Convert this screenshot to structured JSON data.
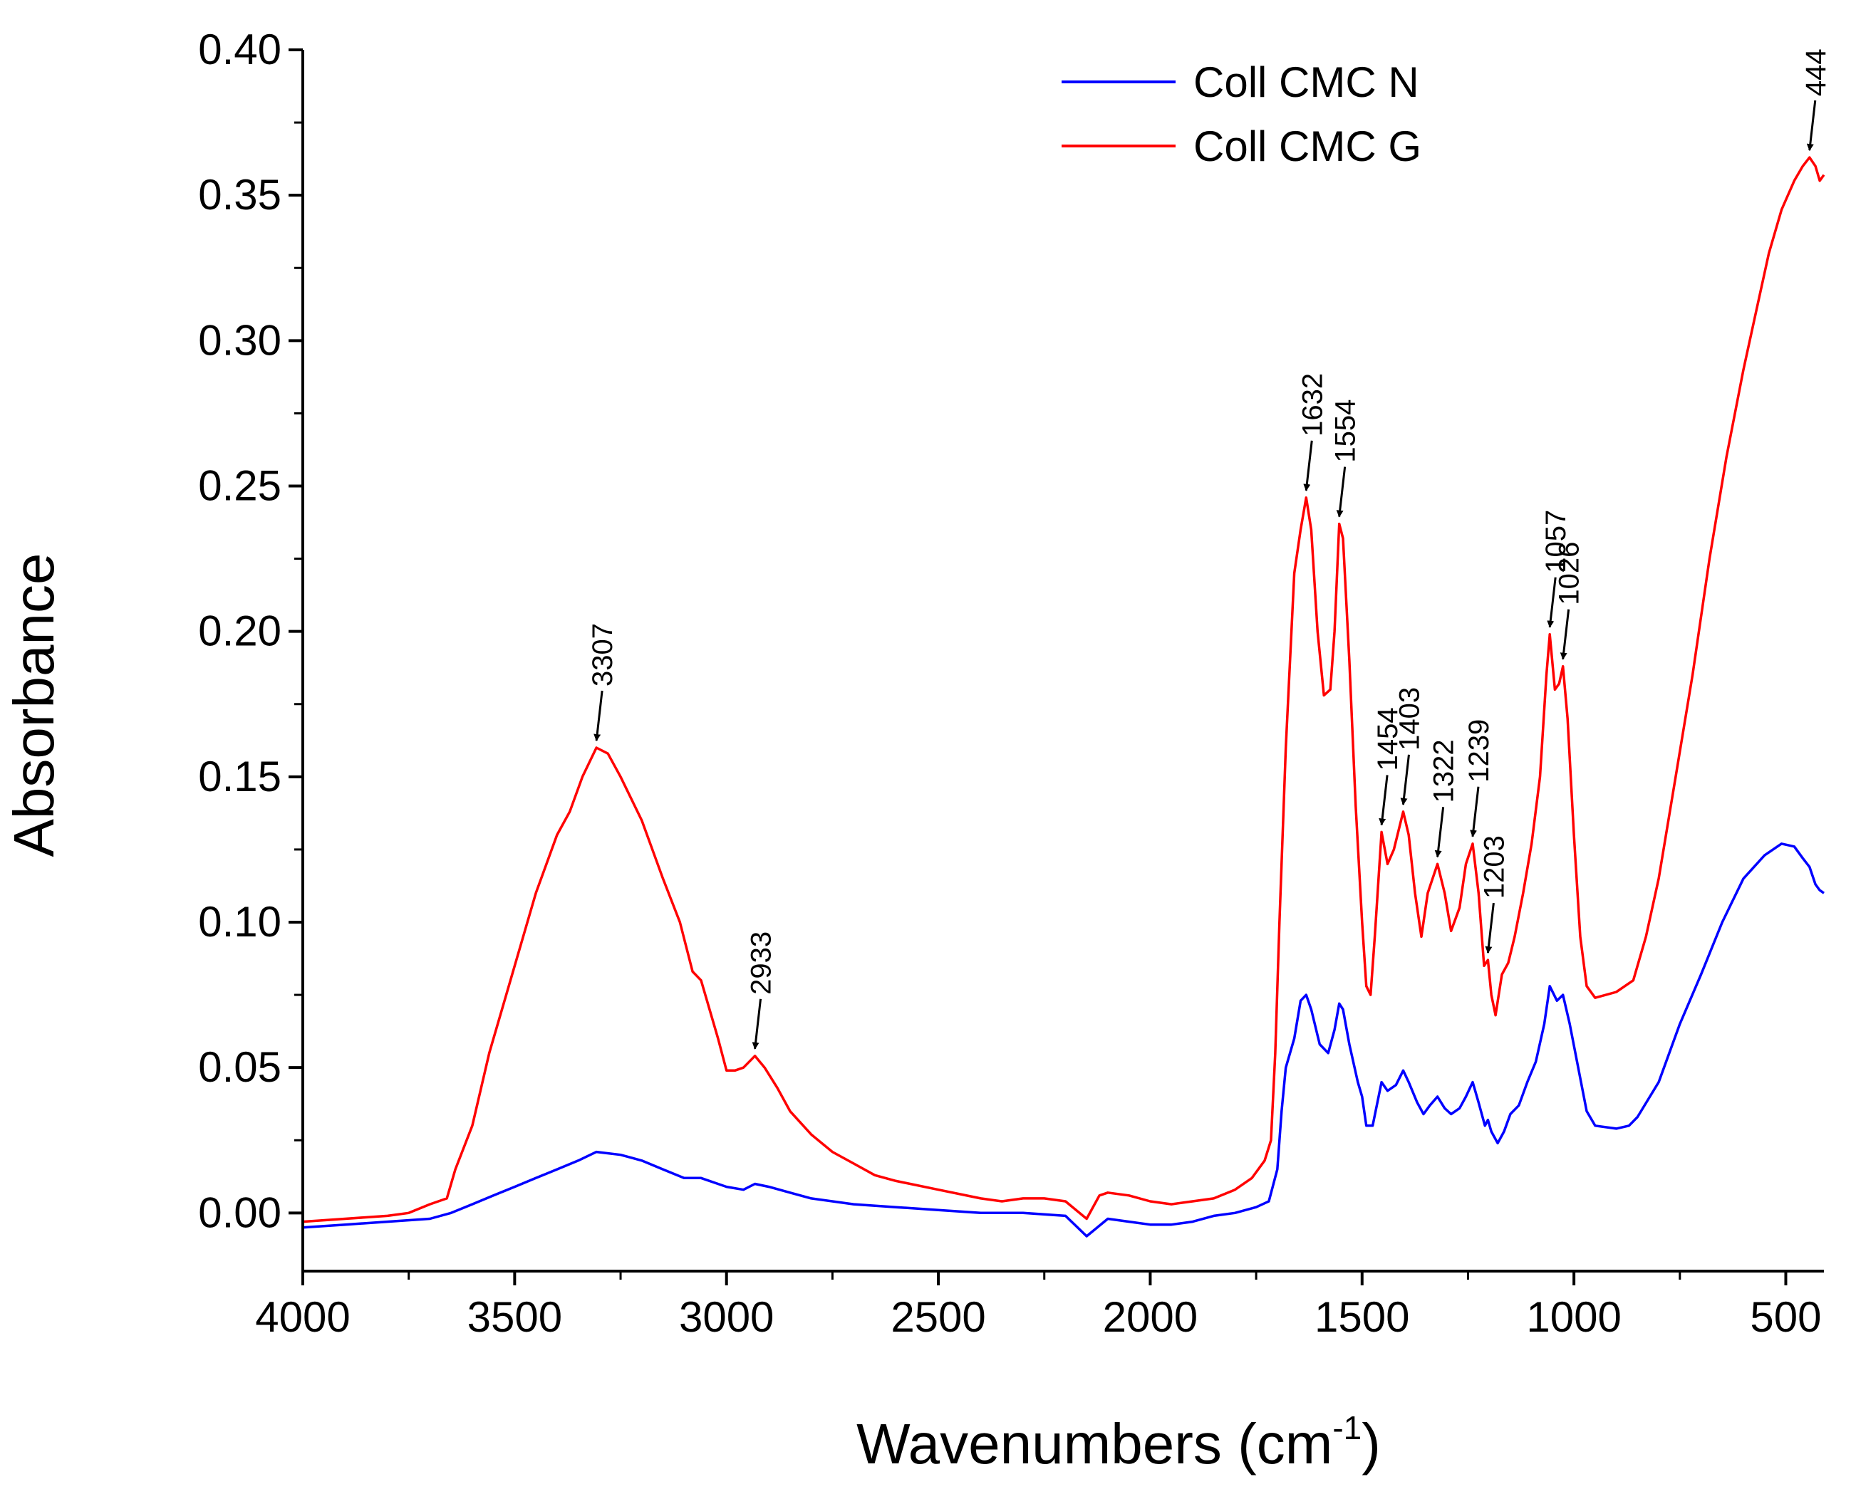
{
  "chart_data": {
    "type": "line",
    "title": "",
    "xlabel": "Wavenumbers (cm",
    "xlabel_sup": "-1",
    "xlabel_close": ")",
    "ylabel": "Absorbance",
    "xlim": [
      4000,
      410
    ],
    "ylim": [
      -0.02,
      0.4
    ],
    "x_ticks": [
      {
        "value": 4000,
        "label": "4000"
      },
      {
        "value": 3500,
        "label": "3500"
      },
      {
        "value": 3000,
        "label": "3000"
      },
      {
        "value": 2500,
        "label": "2500"
      },
      {
        "value": 2000,
        "label": "2000"
      },
      {
        "value": 1500,
        "label": "1500"
      },
      {
        "value": 1000,
        "label": "1000"
      },
      {
        "value": 500,
        "label": "500"
      }
    ],
    "y_ticks": [
      {
        "value": 0.0,
        "label": "0.00"
      },
      {
        "value": 0.05,
        "label": "0.05"
      },
      {
        "value": 0.1,
        "label": "0.10"
      },
      {
        "value": 0.15,
        "label": "0.15"
      },
      {
        "value": 0.2,
        "label": "0.20"
      },
      {
        "value": 0.25,
        "label": "0.25"
      },
      {
        "value": 0.3,
        "label": "0.30"
      },
      {
        "value": 0.35,
        "label": "0.35"
      },
      {
        "value": 0.4,
        "label": "0.40"
      }
    ],
    "legend_position": "top-right",
    "series": [
      {
        "name": "Coll CMC N",
        "color": "#0000ff",
        "points": [
          [
            4000,
            -0.005
          ],
          [
            3900,
            -0.004
          ],
          [
            3800,
            -0.003
          ],
          [
            3700,
            -0.002
          ],
          [
            3650,
            0.0
          ],
          [
            3600,
            0.003
          ],
          [
            3550,
            0.006
          ],
          [
            3500,
            0.009
          ],
          [
            3450,
            0.012
          ],
          [
            3400,
            0.015
          ],
          [
            3350,
            0.018
          ],
          [
            3307,
            0.021
          ],
          [
            3250,
            0.02
          ],
          [
            3200,
            0.018
          ],
          [
            3150,
            0.015
          ],
          [
            3100,
            0.012
          ],
          [
            3060,
            0.012
          ],
          [
            3000,
            0.009
          ],
          [
            2960,
            0.008
          ],
          [
            2933,
            0.01
          ],
          [
            2900,
            0.009
          ],
          [
            2850,
            0.007
          ],
          [
            2800,
            0.005
          ],
          [
            2700,
            0.003
          ],
          [
            2600,
            0.002
          ],
          [
            2500,
            0.001
          ],
          [
            2400,
            0.0
          ],
          [
            2300,
            0.0
          ],
          [
            2200,
            -0.001
          ],
          [
            2150,
            -0.008
          ],
          [
            2100,
            -0.002
          ],
          [
            2050,
            -0.003
          ],
          [
            2000,
            -0.004
          ],
          [
            1950,
            -0.004
          ],
          [
            1900,
            -0.003
          ],
          [
            1850,
            -0.001
          ],
          [
            1800,
            0.0
          ],
          [
            1750,
            0.002
          ],
          [
            1720,
            0.004
          ],
          [
            1700,
            0.015
          ],
          [
            1690,
            0.035
          ],
          [
            1680,
            0.05
          ],
          [
            1660,
            0.06
          ],
          [
            1645,
            0.073
          ],
          [
            1632,
            0.075
          ],
          [
            1620,
            0.07
          ],
          [
            1600,
            0.058
          ],
          [
            1580,
            0.055
          ],
          [
            1565,
            0.063
          ],
          [
            1554,
            0.072
          ],
          [
            1545,
            0.07
          ],
          [
            1530,
            0.058
          ],
          [
            1510,
            0.045
          ],
          [
            1500,
            0.04
          ],
          [
            1490,
            0.03
          ],
          [
            1475,
            0.03
          ],
          [
            1454,
            0.045
          ],
          [
            1440,
            0.042
          ],
          [
            1420,
            0.044
          ],
          [
            1403,
            0.049
          ],
          [
            1390,
            0.045
          ],
          [
            1370,
            0.038
          ],
          [
            1355,
            0.034
          ],
          [
            1340,
            0.037
          ],
          [
            1322,
            0.04
          ],
          [
            1305,
            0.036
          ],
          [
            1290,
            0.034
          ],
          [
            1270,
            0.036
          ],
          [
            1255,
            0.04
          ],
          [
            1239,
            0.045
          ],
          [
            1225,
            0.038
          ],
          [
            1210,
            0.03
          ],
          [
            1203,
            0.032
          ],
          [
            1195,
            0.028
          ],
          [
            1180,
            0.024
          ],
          [
            1165,
            0.028
          ],
          [
            1150,
            0.034
          ],
          [
            1130,
            0.037
          ],
          [
            1110,
            0.045
          ],
          [
            1090,
            0.052
          ],
          [
            1070,
            0.065
          ],
          [
            1057,
            0.078
          ],
          [
            1040,
            0.073
          ],
          [
            1026,
            0.075
          ],
          [
            1010,
            0.065
          ],
          [
            990,
            0.05
          ],
          [
            970,
            0.035
          ],
          [
            950,
            0.03
          ],
          [
            900,
            0.029
          ],
          [
            870,
            0.03
          ],
          [
            850,
            0.033
          ],
          [
            800,
            0.045
          ],
          [
            750,
            0.065
          ],
          [
            700,
            0.082
          ],
          [
            650,
            0.1
          ],
          [
            600,
            0.115
          ],
          [
            550,
            0.123
          ],
          [
            510,
            0.127
          ],
          [
            480,
            0.126
          ],
          [
            460,
            0.122
          ],
          [
            444,
            0.119
          ],
          [
            430,
            0.113
          ],
          [
            420,
            0.111
          ],
          [
            410,
            0.11
          ]
        ]
      },
      {
        "name": "Coll CMC G",
        "color": "#ff0000",
        "points": [
          [
            4000,
            -0.003
          ],
          [
            3900,
            -0.002
          ],
          [
            3800,
            -0.001
          ],
          [
            3750,
            0.0
          ],
          [
            3700,
            0.003
          ],
          [
            3660,
            0.005
          ],
          [
            3640,
            0.015
          ],
          [
            3600,
            0.03
          ],
          [
            3560,
            0.055
          ],
          [
            3500,
            0.085
          ],
          [
            3450,
            0.11
          ],
          [
            3400,
            0.13
          ],
          [
            3370,
            0.138
          ],
          [
            3340,
            0.15
          ],
          [
            3307,
            0.16
          ],
          [
            3280,
            0.158
          ],
          [
            3250,
            0.15
          ],
          [
            3200,
            0.135
          ],
          [
            3150,
            0.115
          ],
          [
            3110,
            0.1
          ],
          [
            3080,
            0.083
          ],
          [
            3060,
            0.08
          ],
          [
            3040,
            0.07
          ],
          [
            3020,
            0.06
          ],
          [
            3000,
            0.049
          ],
          [
            2980,
            0.049
          ],
          [
            2960,
            0.05
          ],
          [
            2933,
            0.054
          ],
          [
            2910,
            0.05
          ],
          [
            2880,
            0.043
          ],
          [
            2850,
            0.035
          ],
          [
            2800,
            0.027
          ],
          [
            2750,
            0.021
          ],
          [
            2700,
            0.017
          ],
          [
            2650,
            0.013
          ],
          [
            2600,
            0.011
          ],
          [
            2500,
            0.008
          ],
          [
            2400,
            0.005
          ],
          [
            2350,
            0.004
          ],
          [
            2300,
            0.005
          ],
          [
            2250,
            0.005
          ],
          [
            2200,
            0.004
          ],
          [
            2150,
            -0.002
          ],
          [
            2120,
            0.006
          ],
          [
            2100,
            0.007
          ],
          [
            2050,
            0.006
          ],
          [
            2000,
            0.004
          ],
          [
            1950,
            0.003
          ],
          [
            1900,
            0.004
          ],
          [
            1850,
            0.005
          ],
          [
            1800,
            0.008
          ],
          [
            1760,
            0.012
          ],
          [
            1730,
            0.018
          ],
          [
            1715,
            0.025
          ],
          [
            1705,
            0.055
          ],
          [
            1695,
            0.1
          ],
          [
            1680,
            0.16
          ],
          [
            1660,
            0.22
          ],
          [
            1645,
            0.235
          ],
          [
            1632,
            0.246
          ],
          [
            1620,
            0.235
          ],
          [
            1605,
            0.2
          ],
          [
            1590,
            0.178
          ],
          [
            1575,
            0.18
          ],
          [
            1565,
            0.2
          ],
          [
            1554,
            0.237
          ],
          [
            1545,
            0.232
          ],
          [
            1530,
            0.19
          ],
          [
            1515,
            0.14
          ],
          [
            1500,
            0.1
          ],
          [
            1490,
            0.078
          ],
          [
            1480,
            0.075
          ],
          [
            1470,
            0.095
          ],
          [
            1454,
            0.131
          ],
          [
            1440,
            0.12
          ],
          [
            1425,
            0.125
          ],
          [
            1403,
            0.138
          ],
          [
            1390,
            0.13
          ],
          [
            1375,
            0.11
          ],
          [
            1360,
            0.095
          ],
          [
            1345,
            0.11
          ],
          [
            1322,
            0.12
          ],
          [
            1305,
            0.11
          ],
          [
            1290,
            0.097
          ],
          [
            1270,
            0.105
          ],
          [
            1255,
            0.12
          ],
          [
            1239,
            0.127
          ],
          [
            1225,
            0.11
          ],
          [
            1212,
            0.085
          ],
          [
            1203,
            0.087
          ],
          [
            1195,
            0.075
          ],
          [
            1185,
            0.068
          ],
          [
            1170,
            0.082
          ],
          [
            1155,
            0.086
          ],
          [
            1140,
            0.095
          ],
          [
            1120,
            0.11
          ],
          [
            1100,
            0.127
          ],
          [
            1080,
            0.15
          ],
          [
            1065,
            0.185
          ],
          [
            1057,
            0.199
          ],
          [
            1045,
            0.18
          ],
          [
            1035,
            0.182
          ],
          [
            1026,
            0.188
          ],
          [
            1015,
            0.17
          ],
          [
            1000,
            0.13
          ],
          [
            985,
            0.095
          ],
          [
            970,
            0.078
          ],
          [
            950,
            0.074
          ],
          [
            900,
            0.076
          ],
          [
            860,
            0.08
          ],
          [
            830,
            0.095
          ],
          [
            800,
            0.115
          ],
          [
            760,
            0.15
          ],
          [
            720,
            0.185
          ],
          [
            680,
            0.225
          ],
          [
            640,
            0.26
          ],
          [
            600,
            0.29
          ],
          [
            570,
            0.31
          ],
          [
            540,
            0.33
          ],
          [
            510,
            0.345
          ],
          [
            480,
            0.355
          ],
          [
            460,
            0.36
          ],
          [
            444,
            0.363
          ],
          [
            430,
            0.36
          ],
          [
            420,
            0.355
          ],
          [
            410,
            0.357
          ]
        ]
      }
    ],
    "annotations": [
      {
        "label": "3307",
        "x": 3307,
        "y": 0.16,
        "series": "Coll CMC G"
      },
      {
        "label": "2933",
        "x": 2933,
        "y": 0.054,
        "series": "Coll CMC G"
      },
      {
        "label": "1632",
        "x": 1632,
        "y": 0.246,
        "series": "Coll CMC G"
      },
      {
        "label": "1554",
        "x": 1554,
        "y": 0.237,
        "series": "Coll CMC G"
      },
      {
        "label": "1454",
        "x": 1454,
        "y": 0.131,
        "series": "Coll CMC G"
      },
      {
        "label": "1403",
        "x": 1403,
        "y": 0.138,
        "series": "Coll CMC G"
      },
      {
        "label": "1322",
        "x": 1322,
        "y": 0.12,
        "series": "Coll CMC G"
      },
      {
        "label": "1239",
        "x": 1239,
        "y": 0.127,
        "series": "Coll CMC G"
      },
      {
        "label": "1203",
        "x": 1203,
        "y": 0.087,
        "series": "Coll CMC G"
      },
      {
        "label": "1057",
        "x": 1057,
        "y": 0.199,
        "series": "Coll CMC G"
      },
      {
        "label": "1026",
        "x": 1026,
        "y": 0.188,
        "series": "Coll CMC G"
      },
      {
        "label": "444",
        "x": 444,
        "y": 0.363,
        "series": "Coll CMC G"
      }
    ]
  }
}
